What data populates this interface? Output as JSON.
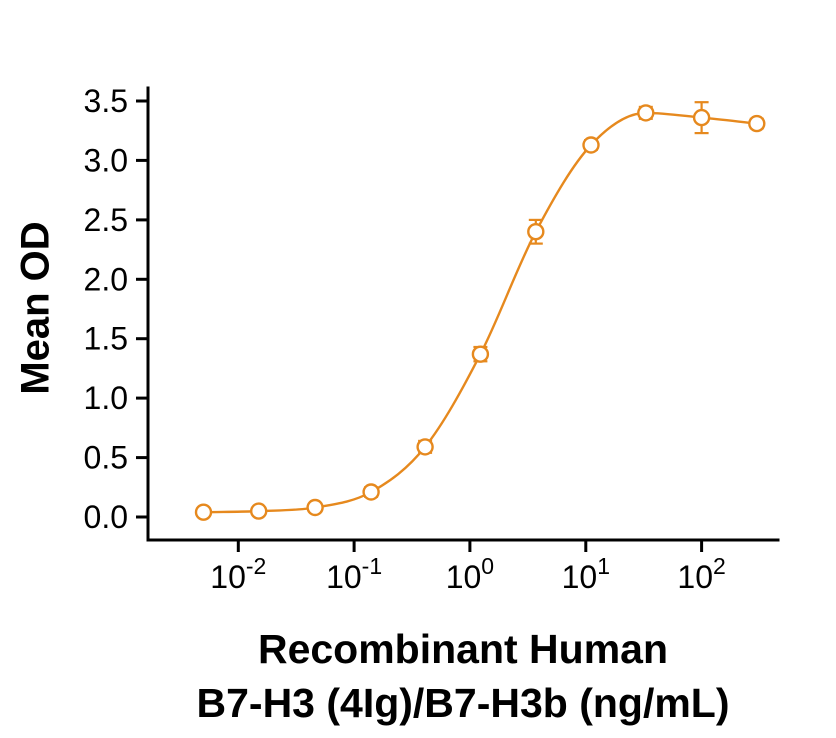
{
  "figure": {
    "background": "#ffffff"
  },
  "chart_data": {
    "type": "scatter",
    "subtype": "dose-response-curve-with-fit",
    "title": "",
    "ylabel": "Mean OD",
    "xlabel_lines": [
      "Recombinant Human",
      "B7-H3 (4Ig)/B7-H3b (ng/mL)"
    ],
    "x_scale": "log10",
    "xlim_log10": [
      -2.78,
      2.66
    ],
    "ylim": [
      0,
      3.5
    ],
    "y_ticks": [
      "0.0",
      "0.5",
      "1.0",
      "1.5",
      "2.0",
      "2.5",
      "3.0",
      "3.5"
    ],
    "x_tick_base": "10",
    "x_tick_exponents": [
      -2,
      -1,
      0,
      1,
      2
    ],
    "grid": false,
    "legend": "none",
    "axis_color": "#000000",
    "series": [
      {
        "name": "Recombinant Human B7-H3 (4Ig)/B7-H3b",
        "color": "#E6891E",
        "marker": "open-circle",
        "line": "smooth-fit",
        "points": [
          {
            "x": 0.005,
            "y": 0.04,
            "err": 0.03
          },
          {
            "x": 0.015,
            "y": 0.05,
            "err": 0.03
          },
          {
            "x": 0.046,
            "y": 0.08,
            "err": 0.03
          },
          {
            "x": 0.14,
            "y": 0.21,
            "err": 0.04
          },
          {
            "x": 0.41,
            "y": 0.59,
            "err": 0.05
          },
          {
            "x": 1.23,
            "y": 1.37,
            "err": 0.06
          },
          {
            "x": 3.7,
            "y": 2.4,
            "err": 0.1
          },
          {
            "x": 11.1,
            "y": 3.13,
            "err": 0.04
          },
          {
            "x": 33,
            "y": 3.4,
            "err": 0.05
          },
          {
            "x": 100,
            "y": 3.36,
            "err": 0.13
          },
          {
            "x": 300,
            "y": 3.31,
            "err": 0.04
          }
        ]
      }
    ]
  }
}
